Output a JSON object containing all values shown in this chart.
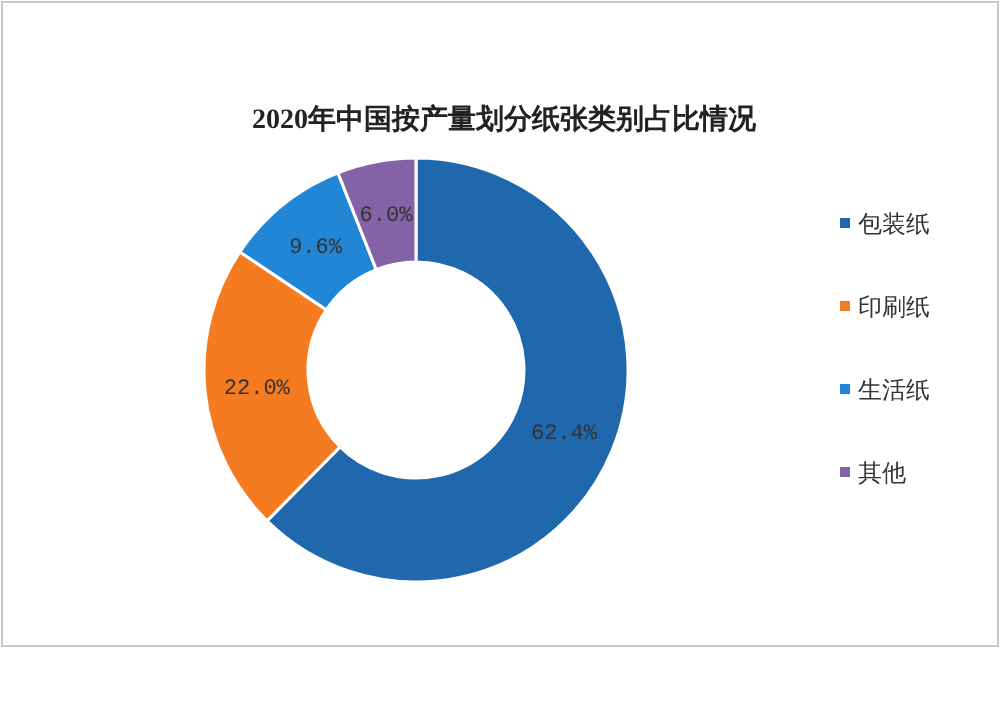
{
  "chart_data": {
    "type": "donut",
    "title": "2020年中国按产量划分纸张类别占比情况",
    "categories": [
      "包装纸",
      "印刷纸",
      "生活纸",
      "其他"
    ],
    "values": [
      62.4,
      22.0,
      9.6,
      6.0
    ],
    "colors": [
      "#1f68ad",
      "#f47b20",
      "#2186d6",
      "#8462a8"
    ],
    "value_labels": [
      "62.4%",
      "22.0%",
      "9.6%",
      "6.0%"
    ],
    "legend": "right"
  }
}
